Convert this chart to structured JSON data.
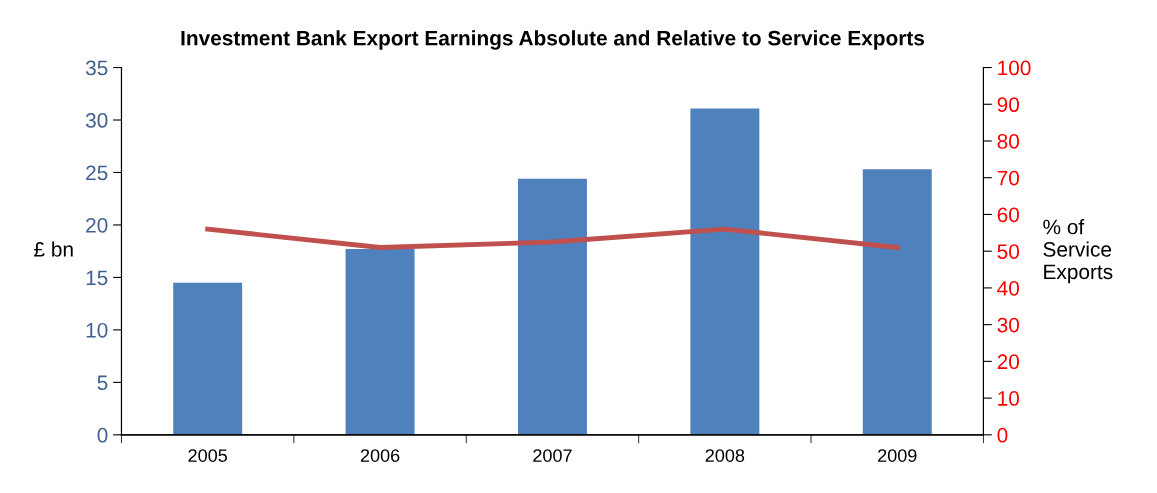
{
  "chart_data": {
    "type": "bar",
    "title": "Investment Bank Export Earnings Absolute and Relative to Service Exports",
    "categories": [
      "2005",
      "2006",
      "2007",
      "2008",
      "2009"
    ],
    "series": [
      {
        "color": "#4f81bd",
        "values": [
          14.5,
          17.7,
          24.4,
          31.1,
          25.3
        ]
      },
      {
        "type": "line",
        "axis": "y2",
        "color": "#c0504d",
        "values": [
          56,
          51,
          52.5,
          56,
          51
        ]
      }
    ],
    "ylabel": "£ bn",
    "y2label": "% of\nService\nExports",
    "ylim": [
      0,
      35
    ],
    "yticks": [
      0,
      5,
      10,
      15,
      20,
      25,
      30,
      35
    ],
    "y2lim": [
      0,
      100
    ],
    "y2ticks": [
      0,
      10,
      20,
      30,
      40,
      50,
      60,
      70,
      80,
      90,
      100
    ],
    "grid": false,
    "legend": false,
    "marker": "none",
    "line_style": "solid"
  }
}
